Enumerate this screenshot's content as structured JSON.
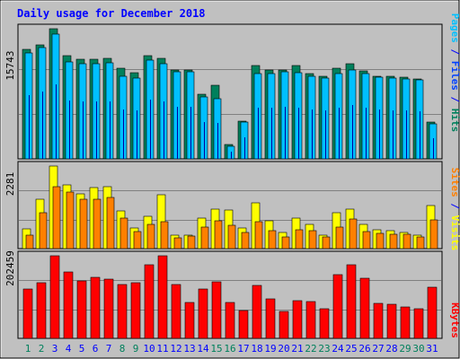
{
  "title": "Daily usage for December 2018",
  "colors": {
    "background": "#c0c0c0",
    "title": "#0000ff",
    "hits": "#00805c",
    "files": "#0040ff",
    "pages": "#00c0ff",
    "visits": "#ffff00",
    "sites": "#ff8000",
    "kbytes": "#ff0000",
    "weekday_label": "#0000ff",
    "weekend_label": "#00805c"
  },
  "chart_data": [
    {
      "type": "bar",
      "panel": "hits-files-pages",
      "y_max_label": "15743",
      "ylim": [
        0,
        15743
      ],
      "legend": [
        "Pages",
        "Files",
        "Hits"
      ],
      "categories": [
        "1",
        "2",
        "3",
        "4",
        "5",
        "6",
        "7",
        "8",
        "9",
        "10",
        "11",
        "12",
        "13",
        "14",
        "15",
        "16",
        "17",
        "18",
        "19",
        "20",
        "21",
        "22",
        "23",
        "24",
        "25",
        "26",
        "27",
        "28",
        "29",
        "30",
        "31"
      ],
      "series": [
        {
          "name": "Hits",
          "color_key": "hits",
          "values": [
            13300,
            13800,
            15743,
            12500,
            12100,
            12000,
            12200,
            11000,
            10400,
            12500,
            12200,
            10800,
            10700,
            7800,
            8900,
            1700,
            4600,
            11300,
            10800,
            10800,
            11300,
            10300,
            10000,
            11000,
            11500,
            10600,
            10000,
            10000,
            9900,
            9700,
            4400
          ]
        },
        {
          "name": "Files",
          "color_key": "files",
          "values": [
            12800,
            13500,
            15100,
            11700,
            11500,
            11500,
            11600,
            10000,
            9800,
            11900,
            11500,
            10500,
            10500,
            7500,
            7300,
            1500,
            4400,
            10300,
            10300,
            10500,
            10400,
            10000,
            9800,
            10300,
            10800,
            10300,
            9900,
            9800,
            9700,
            9600,
            4200
          ]
        },
        {
          "name": "Pages",
          "color_key": "pages",
          "values": [
            12800,
            13500,
            15100,
            11700,
            11500,
            11500,
            11600,
            10000,
            9800,
            11900,
            11500,
            10500,
            10500,
            7500,
            7300,
            1500,
            4400,
            10300,
            10300,
            10500,
            10400,
            10000,
            9800,
            10300,
            10800,
            10300,
            9900,
            9800,
            9700,
            9600,
            4200
          ]
        }
      ]
    },
    {
      "type": "bar",
      "panel": "visits-sites",
      "y_max_label": "2281",
      "ylim": [
        0,
        2281
      ],
      "legend": [
        "Sites",
        "Visits"
      ],
      "categories": [
        "1",
        "2",
        "3",
        "4",
        "5",
        "6",
        "7",
        "8",
        "9",
        "10",
        "11",
        "12",
        "13",
        "14",
        "15",
        "16",
        "17",
        "18",
        "19",
        "20",
        "21",
        "22",
        "23",
        "24",
        "25",
        "26",
        "27",
        "28",
        "29",
        "30",
        "31"
      ],
      "series": [
        {
          "name": "Visits",
          "color_key": "visits",
          "values": [
            550,
            1360,
            2281,
            1760,
            1520,
            1680,
            1720,
            1040,
            580,
            900,
            1480,
            360,
            380,
            840,
            1080,
            1070,
            580,
            1260,
            760,
            440,
            840,
            680,
            380,
            1000,
            1090,
            680,
            530,
            500,
            440,
            380,
            1180
          ]
        },
        {
          "name": "Sites",
          "color_key": "sites",
          "values": [
            380,
            1000,
            1700,
            1560,
            1370,
            1360,
            1410,
            840,
            480,
            660,
            740,
            300,
            350,
            590,
            780,
            640,
            440,
            750,
            500,
            320,
            520,
            500,
            320,
            590,
            810,
            470,
            430,
            390,
            390,
            330,
            800
          ]
        }
      ]
    },
    {
      "type": "bar",
      "panel": "kbytes",
      "y_max_label": "202459",
      "ylim": [
        0,
        202459
      ],
      "legend": [
        "KBytes"
      ],
      "categories": [
        "1",
        "2",
        "3",
        "4",
        "5",
        "6",
        "7",
        "8",
        "9",
        "10",
        "11",
        "12",
        "13",
        "14",
        "15",
        "16",
        "17",
        "18",
        "19",
        "20",
        "21",
        "22",
        "23",
        "24",
        "25",
        "26",
        "27",
        "28",
        "29",
        "30",
        "31"
      ],
      "series": [
        {
          "name": "KBytes",
          "color_key": "kbytes",
          "values": [
            120000,
            137000,
            202459,
            162000,
            140000,
            150000,
            145000,
            133000,
            137000,
            180000,
            202459,
            132000,
            88000,
            120000,
            138000,
            87000,
            68000,
            130000,
            96000,
            65000,
            92000,
            91000,
            72000,
            157000,
            180000,
            148000,
            86000,
            83000,
            76000,
            73000,
            125000
          ]
        }
      ]
    }
  ],
  "day_labels": [
    {
      "text": "1",
      "weekend": true
    },
    {
      "text": "2",
      "weekend": true
    },
    {
      "text": "3",
      "weekend": false
    },
    {
      "text": "4",
      "weekend": false
    },
    {
      "text": "5",
      "weekend": false
    },
    {
      "text": "6",
      "weekend": false
    },
    {
      "text": "7",
      "weekend": false
    },
    {
      "text": "8",
      "weekend": true
    },
    {
      "text": "9",
      "weekend": true
    },
    {
      "text": "10",
      "weekend": false
    },
    {
      "text": "11",
      "weekend": false
    },
    {
      "text": "12",
      "weekend": false
    },
    {
      "text": "13",
      "weekend": false
    },
    {
      "text": "14",
      "weekend": false
    },
    {
      "text": "15",
      "weekend": true
    },
    {
      "text": "16",
      "weekend": true
    },
    {
      "text": "17",
      "weekend": false
    },
    {
      "text": "18",
      "weekend": false
    },
    {
      "text": "19",
      "weekend": false
    },
    {
      "text": "20",
      "weekend": false
    },
    {
      "text": "21",
      "weekend": false
    },
    {
      "text": "22",
      "weekend": true
    },
    {
      "text": "23",
      "weekend": true
    },
    {
      "text": "24",
      "weekend": false
    },
    {
      "text": "25",
      "weekend": false
    },
    {
      "text": "26",
      "weekend": false
    },
    {
      "text": "27",
      "weekend": false
    },
    {
      "text": "28",
      "weekend": false
    },
    {
      "text": "29",
      "weekend": true
    },
    {
      "text": "30",
      "weekend": true
    },
    {
      "text": "31",
      "weekend": false
    }
  ],
  "side_labels": {
    "top": [
      {
        "text": "Pages",
        "color_key": "pages"
      },
      {
        "text": " / ",
        "color_key": "title"
      },
      {
        "text": "Files",
        "color_key": "files"
      },
      {
        "text": " / ",
        "color_key": "title"
      },
      {
        "text": "Hits",
        "color_key": "hits"
      }
    ],
    "middle": [
      {
        "text": "Sites",
        "color_key": "sites"
      },
      {
        "text": " / ",
        "color_key": "title"
      },
      {
        "text": "Visits",
        "color_key": "visits"
      }
    ],
    "bottom": [
      {
        "text": "KBytes",
        "color_key": "kbytes"
      }
    ]
  }
}
